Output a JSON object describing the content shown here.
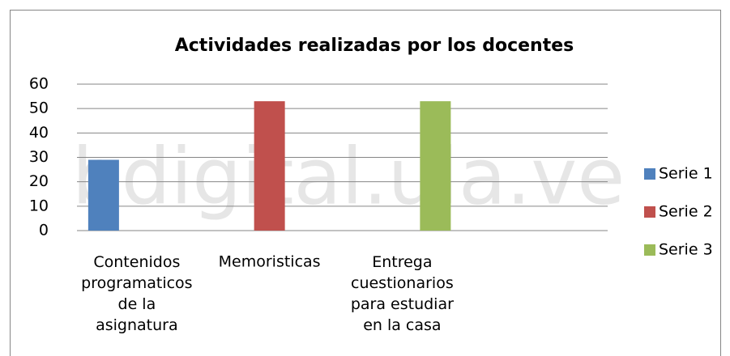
{
  "chart_data": {
    "type": "bar",
    "title": "Actividades realizadas por los docentes",
    "watermark": "bdigital.ula.ve",
    "categories": [
      "Contenidos\nprogramaticos\nde la\nasignatura",
      "Memoristicas",
      "Entrega\ncuestionarios\npara estudiar\nen la casa",
      null
    ],
    "series": [
      {
        "name": "Serie 1",
        "color": "#4f81bd",
        "values": [
          29,
          null,
          null,
          null
        ]
      },
      {
        "name": "Serie 2",
        "color": "#c0504d",
        "values": [
          null,
          53,
          null,
          null
        ]
      },
      {
        "name": "Serie 3",
        "color": "#9bbb59",
        "values": [
          null,
          null,
          53,
          null
        ]
      }
    ],
    "ylim": [
      0,
      60
    ],
    "yticks": [
      0,
      10,
      20,
      30,
      40,
      50,
      60
    ],
    "grid": true,
    "legend": "right"
  }
}
